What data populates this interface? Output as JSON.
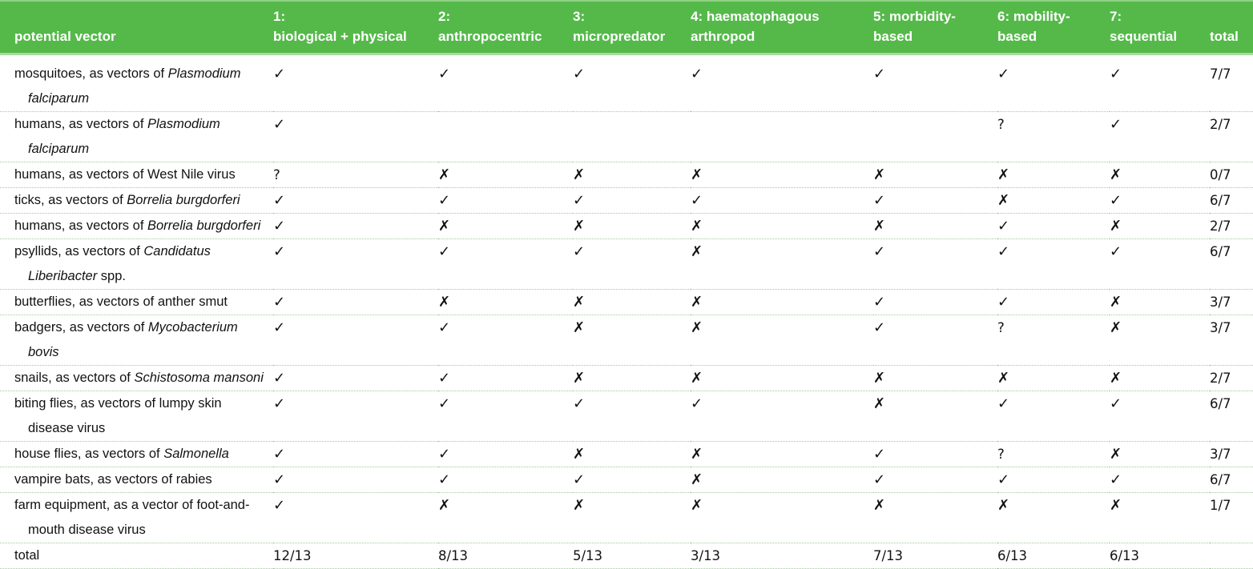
{
  "table": {
    "columns": [
      {
        "key": "vector",
        "label": "potential vector"
      },
      {
        "key": "c1",
        "label": "1:\nbiological + physical"
      },
      {
        "key": "c2",
        "label": "2:\nanthropocentric"
      },
      {
        "key": "c3",
        "label": "3:\nmicropredator"
      },
      {
        "key": "c4",
        "label": "4: haematophagous\narthropod"
      },
      {
        "key": "c5",
        "label": "5: morbidity-\nbased"
      },
      {
        "key": "c6",
        "label": "6: mobility-\nbased"
      },
      {
        "key": "c7",
        "label": "7:\nsequential"
      },
      {
        "key": "total",
        "label": "total"
      }
    ],
    "symbols": {
      "check": "✓",
      "cross": "✗",
      "unknown": "?"
    },
    "colors": {
      "header_green": "#55b94a",
      "header_text": "#ffffff",
      "body_text": "#121212",
      "separator_dotted": "#a2c99c"
    },
    "rows": [
      {
        "name_parts": [
          {
            "t": "mosquitoes, as vectors of "
          },
          {
            "t": "Plasmodium\nfalciparum",
            "i": true
          }
        ],
        "marks": [
          "check",
          "check",
          "check",
          "check",
          "check",
          "check",
          "check"
        ],
        "total": "7/7"
      },
      {
        "name_parts": [
          {
            "t": "humans, as vectors of "
          },
          {
            "t": "Plasmodium\nfalciparum",
            "i": true
          }
        ],
        "marks": [
          "check",
          "",
          "",
          "",
          "",
          "unknown",
          "check"
        ],
        "total": "2/7"
      },
      {
        "name_parts": [
          {
            "t": "humans, as vectors of West Nile virus"
          }
        ],
        "marks": [
          "unknown",
          "cross",
          "cross",
          "cross",
          "cross",
          "cross",
          "cross"
        ],
        "total": "0/7"
      },
      {
        "name_parts": [
          {
            "t": "ticks, as vectors of "
          },
          {
            "t": "Borrelia burgdorferi",
            "i": true
          }
        ],
        "marks": [
          "check",
          "check",
          "check",
          "check",
          "check",
          "cross",
          "check"
        ],
        "total": "6/7"
      },
      {
        "name_parts": [
          {
            "t": "humans, as vectors of "
          },
          {
            "t": "Borrelia burgdorferi",
            "i": true
          }
        ],
        "marks": [
          "check",
          "cross",
          "cross",
          "cross",
          "cross",
          "check",
          "cross"
        ],
        "total": "2/7"
      },
      {
        "name_parts": [
          {
            "t": "psyllids, as vectors of "
          },
          {
            "t": "Candidatus\nLiberibacter",
            "i": true
          },
          {
            "t": " spp."
          }
        ],
        "marks": [
          "check",
          "check",
          "check",
          "cross",
          "check",
          "check",
          "check"
        ],
        "total": "6/7"
      },
      {
        "name_parts": [
          {
            "t": "butterflies, as vectors of anther smut"
          }
        ],
        "marks": [
          "check",
          "cross",
          "cross",
          "cross",
          "check",
          "check",
          "cross"
        ],
        "total": "3/7"
      },
      {
        "name_parts": [
          {
            "t": "badgers, as vectors of "
          },
          {
            "t": "Mycobacterium bovis",
            "i": true
          }
        ],
        "marks": [
          "check",
          "check",
          "cross",
          "cross",
          "check",
          "unknown",
          "cross"
        ],
        "total": "3/7"
      },
      {
        "name_parts": [
          {
            "t": "snails, as vectors of "
          },
          {
            "t": "Schistosoma mansoni",
            "i": true
          }
        ],
        "marks": [
          "check",
          "check",
          "cross",
          "cross",
          "cross",
          "cross",
          "cross"
        ],
        "total": "2/7"
      },
      {
        "name_parts": [
          {
            "t": "biting flies, as vectors of lumpy skin\ndisease virus"
          }
        ],
        "marks": [
          "check",
          "check",
          "check",
          "check",
          "cross",
          "check",
          "check"
        ],
        "total": "6/7"
      },
      {
        "name_parts": [
          {
            "t": "house flies, as vectors of "
          },
          {
            "t": "Salmonella",
            "i": true
          }
        ],
        "marks": [
          "check",
          "check",
          "cross",
          "cross",
          "check",
          "unknown",
          "cross"
        ],
        "total": "3/7"
      },
      {
        "name_parts": [
          {
            "t": "vampire bats, as vectors of rabies"
          }
        ],
        "marks": [
          "check",
          "check",
          "check",
          "cross",
          "check",
          "check",
          "check"
        ],
        "total": "6/7"
      },
      {
        "name_parts": [
          {
            "t": "farm equipment, as a vector of foot-and-\nmouth disease virus"
          }
        ],
        "marks": [
          "check",
          "cross",
          "cross",
          "cross",
          "cross",
          "cross",
          "cross"
        ],
        "total": "1/7"
      }
    ],
    "footer": {
      "label": "total",
      "values": [
        "12/13",
        "8/13",
        "5/13",
        "3/13",
        "7/13",
        "6/13",
        "6/13"
      ],
      "total": ""
    }
  }
}
